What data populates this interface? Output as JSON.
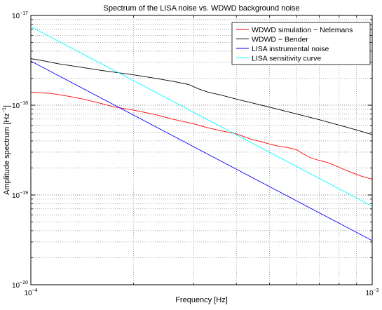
{
  "chart_data": {
    "type": "line",
    "title": "Spectrum of the LISA noise vs. WDWD background noise",
    "xlabel": "Frequency [Hz]",
    "ylabel": {
      "base": "Amplitude spectrum [Hz",
      "exponent": "−1",
      "close": "]"
    },
    "x_scale": "log",
    "y_scale": "log",
    "xlim": [
      0.0001,
      0.001
    ],
    "ylim": [
      1e-20,
      1e-17
    ],
    "grid": true,
    "legend_position": "top-right",
    "x_ticks": [
      {
        "value": 0.0001,
        "base": "10",
        "exp": "−4"
      },
      {
        "value": 0.001,
        "base": "10",
        "exp": "−3"
      }
    ],
    "y_ticks": [
      {
        "value": 1e-20,
        "base": "10",
        "exp": "−20"
      },
      {
        "value": 1e-19,
        "base": "10",
        "exp": "−19"
      },
      {
        "value": 1e-18,
        "base": "10",
        "exp": "−18"
      },
      {
        "value": 1e-17,
        "base": "10",
        "exp": "−17"
      }
    ],
    "series": [
      {
        "name": "WDWD simulation − Nelemans",
        "color": "#ff0000",
        "x": [
          0.0001,
          0.000115,
          0.00013,
          0.000145,
          0.00016,
          0.000175,
          0.0002,
          0.00023,
          0.00026,
          0.0003,
          0.00033,
          0.00036,
          0.0004,
          0.00044,
          0.00047,
          0.0005,
          0.00053,
          0.00056,
          0.0006,
          0.00063,
          0.00066,
          0.0007,
          0.00074,
          0.00078,
          0.00082,
          0.00087,
          0.00093,
          0.001
        ],
        "y": [
          1.4e-18,
          1.35e-18,
          1.25e-18,
          1.15e-18,
          1.05e-18,
          9.6e-19,
          8.8e-19,
          7.9e-19,
          7e-19,
          6.2e-19,
          5.6e-19,
          5.2e-19,
          4.8e-19,
          4.2e-19,
          3.95e-19,
          3.7e-19,
          3.5e-19,
          3.4e-19,
          3.2e-19,
          2.85e-19,
          2.6e-19,
          2.42e-19,
          2.3e-19,
          2.12e-19,
          1.95e-19,
          1.78e-19,
          1.62e-19,
          1.5e-19
        ]
      },
      {
        "name": "WDWD − Bender",
        "color": "#000000",
        "x": [
          0.0001,
          0.00011,
          0.00012,
          0.00014,
          0.00016,
          0.00018,
          0.0002,
          0.00023,
          0.00026,
          0.00029,
          0.00031,
          0.00033,
          0.00036,
          0.0004,
          0.00045,
          0.0005,
          0.0006,
          0.0007,
          0.0008,
          0.0009,
          0.001
        ],
        "y": [
          3.3e-18,
          3.1e-18,
          2.9e-18,
          2.65e-18,
          2.45e-18,
          2.3e-18,
          2.18e-18,
          2e-18,
          1.85e-18,
          1.7e-18,
          1.52e-18,
          1.4e-18,
          1.3e-18,
          1.17e-18,
          1.05e-18,
          9.5e-19,
          8e-19,
          6.9e-19,
          6e-19,
          5.3e-19,
          4.7e-19
        ]
      },
      {
        "name": "LISA instrumental noise",
        "color": "#0000ff",
        "x": [
          0.0001,
          0.001
        ],
        "y": [
          3.1e-18,
          3.1e-20
        ]
      },
      {
        "name": "LISA sensitivity curve",
        "color": "#00ffff",
        "x": [
          0.0001,
          0.001
        ],
        "y": [
          7.5e-18,
          7.5e-20
        ]
      }
    ]
  }
}
